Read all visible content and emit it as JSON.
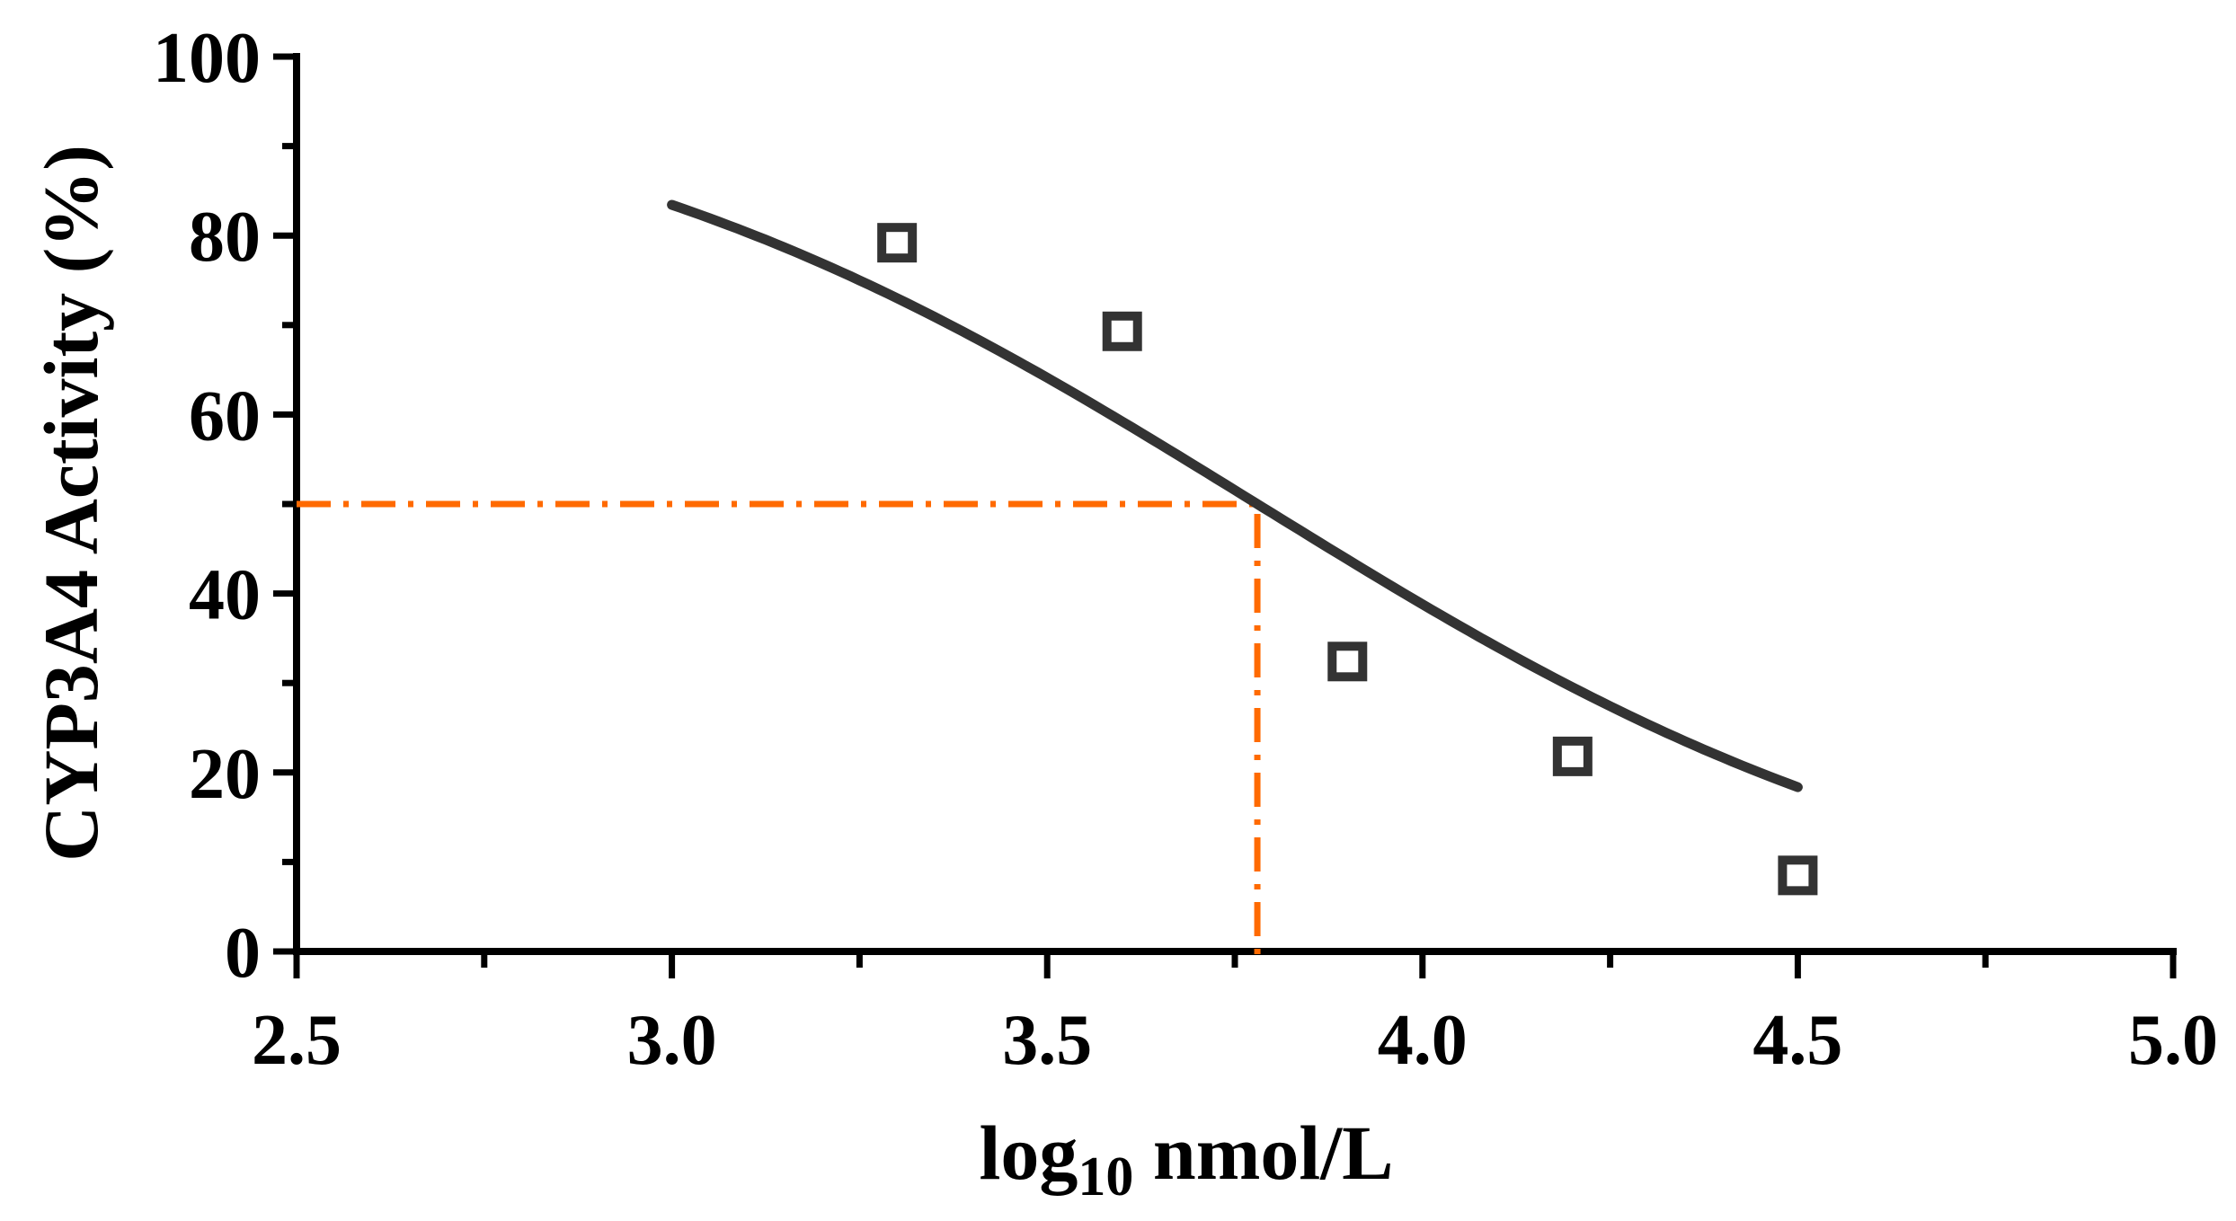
{
  "chart_data": {
    "type": "scatter",
    "xlabel_main": "log",
    "xlabel_sub": "10",
    "xlabel_rest": " nmol/L",
    "ylabel": "CYP3A4 Activity (%)",
    "xlim": [
      2.5,
      5.0
    ],
    "ylim": [
      0,
      100
    ],
    "x_ticks": [
      "2.5",
      "3.0",
      "3.5",
      "4.0",
      "4.5",
      "5.0"
    ],
    "y_ticks": [
      "0",
      "20",
      "40",
      "60",
      "80",
      "100"
    ],
    "grid": false,
    "points": [
      {
        "x": 3.3,
        "y": 79.2
      },
      {
        "x": 3.6,
        "y": 69.3
      },
      {
        "x": 3.9,
        "y": 32.4
      },
      {
        "x": 4.2,
        "y": 21.8
      },
      {
        "x": 4.5,
        "y": 8.5
      }
    ],
    "fit": {
      "model": "four-parameter logistic",
      "top": 100,
      "bottom": 0,
      "log_ic50": 3.78,
      "hill_slope": -0.9,
      "x_range": [
        3.0,
        4.5
      ]
    },
    "ic50_reference": {
      "x": 3.78,
      "y": 50
    },
    "colors": {
      "curve": "#333333",
      "markers": "#333333",
      "ic50_line": "#ff6a00",
      "axes": "#000000"
    }
  }
}
